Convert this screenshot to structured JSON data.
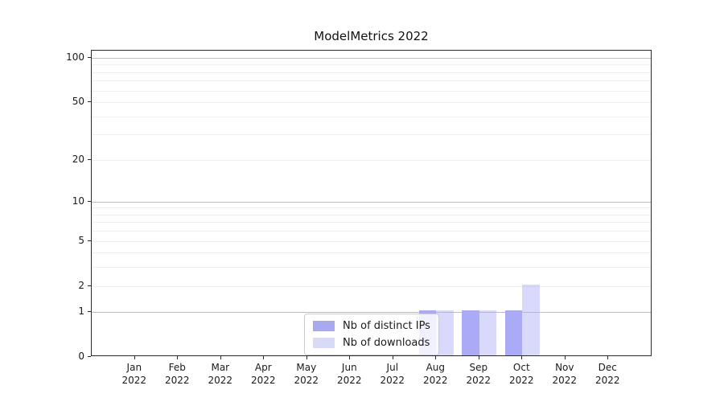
{
  "title": "ModelMetrics 2022",
  "legend": {
    "items": [
      {
        "label": "Nb of distinct IPs",
        "color": "#a9a9f2"
      },
      {
        "label": "Nb of downloads",
        "color": "#d9d9f8"
      }
    ]
  },
  "chart_data": {
    "type": "bar",
    "title": "ModelMetrics 2022",
    "categories": [
      "Jan 2022",
      "Feb 2022",
      "Mar 2022",
      "Apr 2022",
      "May 2022",
      "Jun 2022",
      "Jul 2022",
      "Aug 2022",
      "Sep 2022",
      "Oct 2022",
      "Nov 2022",
      "Dec 2022"
    ],
    "series": [
      {
        "name": "Nb of distinct IPs",
        "color": "#aaaaf6",
        "values": [
          0,
          0,
          0,
          0,
          0,
          0,
          0,
          1,
          1,
          1,
          0,
          0
        ]
      },
      {
        "name": "Nb of downloads",
        "color": "rgba(170,170,246,0.45)",
        "values": [
          0,
          0,
          0,
          0,
          0,
          0,
          0,
          1,
          1,
          2,
          0,
          0
        ]
      }
    ],
    "yscale": "log1p",
    "y_tick_values": [
      0,
      1,
      2,
      5,
      10,
      20,
      50,
      100
    ],
    "y_minor_gridline_values": [
      2,
      3,
      4,
      5,
      6,
      7,
      8,
      9,
      20,
      30,
      40,
      50,
      60,
      70,
      80,
      90
    ],
    "y_major_gridline_values": [
      1,
      10,
      100
    ],
    "ylim": [
      0,
      113
    ],
    "xlabel": "",
    "ylabel": "",
    "grid": "both",
    "legend_position": "lower center",
    "bar_grouping": "paired"
  }
}
